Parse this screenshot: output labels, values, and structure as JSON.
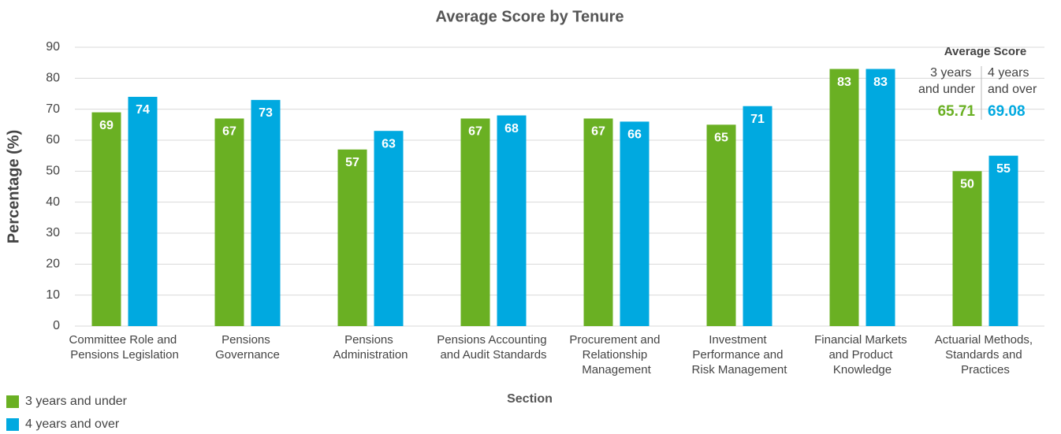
{
  "chart_data": {
    "type": "bar",
    "title": "Average Score by Tenure",
    "x_label": "Section",
    "y_label": "Percentage (%)",
    "categories": [
      "Committee Role and Pensions Legislation",
      "Pensions Governance",
      "Pensions Administration",
      "Pensions Accounting and Audit Standards",
      "Procurement and Relationship Management",
      "Investment Performance and Risk Management",
      "Financial Markets and Product Knowledge",
      "Actuarial Methods, Standards and Practices"
    ],
    "series": [
      {
        "name": "3 years and under",
        "color": "#6ab023",
        "values": [
          69,
          67,
          57,
          67,
          67,
          65,
          83,
          50
        ]
      },
      {
        "name": "4 years and over",
        "color": "#00a9e0",
        "values": [
          74,
          73,
          63,
          68,
          66,
          71,
          83,
          55
        ]
      }
    ],
    "ylim": [
      0,
      90
    ],
    "yticks": [
      0,
      10,
      20,
      30,
      40,
      50,
      60,
      70,
      80,
      90
    ],
    "grid": true,
    "legend": "bottom-left",
    "annotation": {
      "title": "Average Score",
      "items": [
        {
          "label": "3 years and under",
          "value": "65.71",
          "color": "#6ab023"
        },
        {
          "label": "4 years and over",
          "value": "69.08",
          "color": "#00a9e0"
        }
      ]
    }
  }
}
